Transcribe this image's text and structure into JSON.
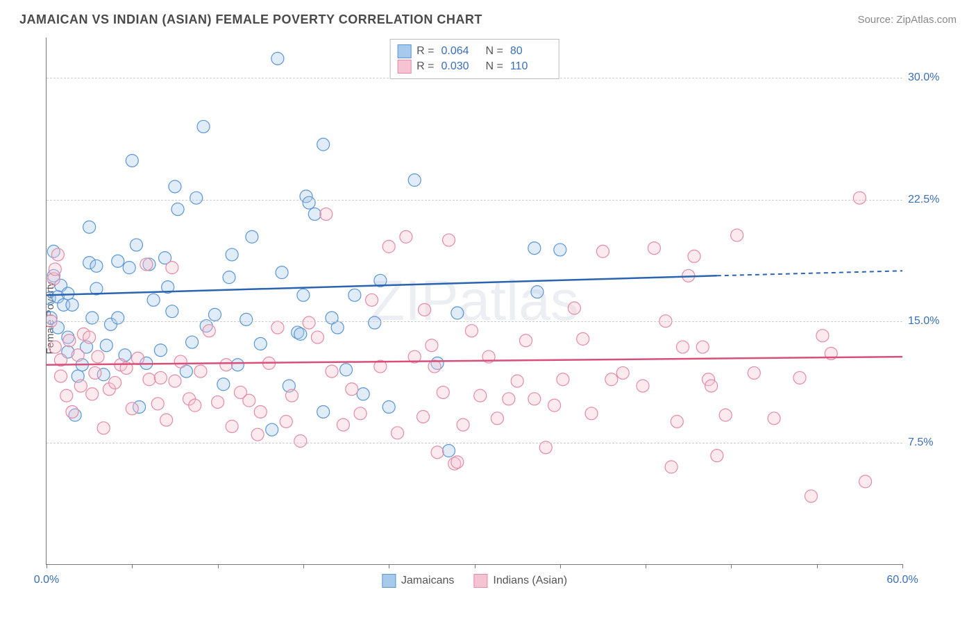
{
  "title": "JAMAICAN VS INDIAN (ASIAN) FEMALE POVERTY CORRELATION CHART",
  "source": "Source: ZipAtlas.com",
  "ylabel": "Female Poverty",
  "watermark": "ZIPatlas",
  "chart": {
    "type": "scatter",
    "background_color": "#ffffff",
    "grid_color": "#cccccc",
    "axis_color": "#777777",
    "text_color": "#555555",
    "value_color": "#3a6fb7",
    "xlim": [
      0,
      60
    ],
    "ylim": [
      0,
      32.5
    ],
    "xtick_positions": [
      0,
      6,
      12,
      18,
      24,
      30,
      36,
      42,
      48,
      54,
      60
    ],
    "xtick_labels": {
      "0": "0.0%",
      "60": "60.0%"
    },
    "ytick_positions": [
      7.5,
      15.0,
      22.5,
      30.0
    ],
    "ytick_labels": [
      "7.5%",
      "15.0%",
      "22.5%",
      "30.0%"
    ],
    "marker_radius": 9,
    "marker_stroke_width": 1.2,
    "marker_fill_opacity": 0.35,
    "line_width": 2.5,
    "series": [
      {
        "key": "jamaicans",
        "label": "Jamaicans",
        "color_stroke": "#5a95d6",
        "color_fill": "#a7c9ec",
        "line_color": "#2a63b0",
        "R": "0.064",
        "N": "80",
        "trend": {
          "x1": 0,
          "y1": 16.6,
          "x2": 47,
          "y2": 17.8,
          "dash_x2": 60,
          "dash_y2": 18.1
        },
        "points": [
          [
            0.2,
            16.4
          ],
          [
            0.3,
            15.2
          ],
          [
            0.5,
            17.8
          ],
          [
            0.5,
            19.3
          ],
          [
            0.8,
            14.6
          ],
          [
            0.8,
            16.5
          ],
          [
            1.0,
            17.2
          ],
          [
            1.2,
            16.0
          ],
          [
            1.5,
            14.0
          ],
          [
            1.5,
            13.1
          ],
          [
            1.5,
            16.7
          ],
          [
            1.8,
            16.0
          ],
          [
            2.0,
            9.2
          ],
          [
            2.2,
            11.6
          ],
          [
            2.5,
            12.3
          ],
          [
            2.8,
            13.4
          ],
          [
            3.0,
            20.8
          ],
          [
            3.0,
            18.6
          ],
          [
            3.2,
            15.2
          ],
          [
            3.5,
            17.0
          ],
          [
            3.5,
            18.4
          ],
          [
            4.0,
            11.7
          ],
          [
            4.2,
            13.5
          ],
          [
            4.5,
            14.8
          ],
          [
            5.0,
            15.2
          ],
          [
            5.0,
            18.7
          ],
          [
            5.5,
            12.9
          ],
          [
            5.8,
            18.3
          ],
          [
            6.0,
            24.9
          ],
          [
            6.3,
            19.7
          ],
          [
            6.5,
            9.7
          ],
          [
            7.0,
            12.4
          ],
          [
            7.2,
            18.5
          ],
          [
            7.5,
            16.3
          ],
          [
            8.0,
            13.2
          ],
          [
            8.3,
            18.9
          ],
          [
            8.5,
            17.1
          ],
          [
            8.8,
            15.6
          ],
          [
            9.0,
            23.3
          ],
          [
            9.2,
            21.9
          ],
          [
            9.8,
            11.9
          ],
          [
            10.2,
            13.7
          ],
          [
            10.5,
            22.6
          ],
          [
            11.0,
            27.0
          ],
          [
            11.2,
            14.7
          ],
          [
            11.8,
            15.4
          ],
          [
            12.4,
            11.1
          ],
          [
            12.8,
            17.7
          ],
          [
            13.0,
            19.1
          ],
          [
            13.4,
            12.3
          ],
          [
            14.0,
            15.1
          ],
          [
            14.4,
            20.2
          ],
          [
            15.0,
            13.6
          ],
          [
            15.8,
            8.3
          ],
          [
            16.2,
            31.2
          ],
          [
            16.5,
            18.0
          ],
          [
            17.0,
            11.0
          ],
          [
            17.6,
            14.3
          ],
          [
            17.8,
            14.2
          ],
          [
            18.0,
            16.6
          ],
          [
            18.2,
            22.7
          ],
          [
            18.4,
            22.3
          ],
          [
            18.8,
            21.6
          ],
          [
            19.4,
            9.4
          ],
          [
            19.4,
            25.9
          ],
          [
            20.0,
            15.2
          ],
          [
            20.4,
            14.6
          ],
          [
            21.0,
            12.0
          ],
          [
            21.6,
            16.6
          ],
          [
            22.2,
            10.5
          ],
          [
            23.0,
            14.9
          ],
          [
            23.4,
            17.5
          ],
          [
            24.0,
            9.7
          ],
          [
            25.8,
            23.7
          ],
          [
            27.4,
            12.4
          ],
          [
            28.2,
            7.0
          ],
          [
            28.8,
            15.5
          ],
          [
            34.2,
            19.5
          ],
          [
            34.4,
            16.8
          ],
          [
            36.0,
            19.4
          ]
        ]
      },
      {
        "key": "indians",
        "label": "Indians (Asian)",
        "color_stroke": "#e48aa4",
        "color_fill": "#f5c3d2",
        "line_color": "#d94f7a",
        "R": "0.030",
        "N": "110",
        "trend": {
          "x1": 0,
          "y1": 12.3,
          "x2": 60,
          "y2": 12.8
        },
        "points": [
          [
            0.3,
            15.0
          ],
          [
            0.5,
            17.6
          ],
          [
            0.6,
            18.2
          ],
          [
            0.6,
            13.4
          ],
          [
            0.8,
            19.1
          ],
          [
            1.0,
            12.6
          ],
          [
            1.0,
            11.6
          ],
          [
            1.4,
            10.4
          ],
          [
            1.6,
            13.8
          ],
          [
            1.8,
            9.4
          ],
          [
            2.2,
            12.9
          ],
          [
            2.4,
            11.0
          ],
          [
            2.6,
            14.2
          ],
          [
            3.0,
            14.0
          ],
          [
            3.2,
            10.5
          ],
          [
            3.4,
            11.8
          ],
          [
            3.6,
            12.8
          ],
          [
            4.0,
            8.4
          ],
          [
            4.4,
            10.8
          ],
          [
            4.8,
            11.2
          ],
          [
            5.2,
            12.3
          ],
          [
            5.6,
            12.1
          ],
          [
            6.0,
            9.6
          ],
          [
            6.4,
            12.7
          ],
          [
            7.0,
            18.5
          ],
          [
            7.2,
            11.4
          ],
          [
            7.8,
            9.9
          ],
          [
            8.0,
            11.5
          ],
          [
            8.4,
            8.9
          ],
          [
            8.8,
            18.3
          ],
          [
            9.0,
            11.3
          ],
          [
            9.4,
            12.5
          ],
          [
            10.0,
            10.2
          ],
          [
            10.4,
            9.8
          ],
          [
            10.8,
            11.9
          ],
          [
            11.4,
            14.4
          ],
          [
            12.0,
            10.0
          ],
          [
            12.6,
            12.3
          ],
          [
            13.0,
            8.5
          ],
          [
            13.6,
            10.6
          ],
          [
            14.2,
            10.1
          ],
          [
            14.8,
            8.0
          ],
          [
            15.0,
            9.4
          ],
          [
            15.6,
            12.4
          ],
          [
            16.2,
            14.6
          ],
          [
            16.8,
            8.8
          ],
          [
            17.2,
            10.4
          ],
          [
            17.8,
            7.6
          ],
          [
            18.4,
            14.9
          ],
          [
            19.0,
            14.0
          ],
          [
            19.6,
            21.6
          ],
          [
            20.0,
            11.9
          ],
          [
            20.8,
            8.6
          ],
          [
            21.4,
            10.8
          ],
          [
            22.0,
            9.3
          ],
          [
            22.8,
            16.3
          ],
          [
            23.4,
            12.2
          ],
          [
            24.0,
            19.6
          ],
          [
            24.6,
            8.1
          ],
          [
            25.2,
            20.2
          ],
          [
            25.8,
            12.8
          ],
          [
            26.4,
            9.1
          ],
          [
            26.5,
            15.7
          ],
          [
            27.0,
            13.5
          ],
          [
            27.2,
            12.2
          ],
          [
            27.4,
            6.9
          ],
          [
            27.8,
            10.6
          ],
          [
            28.2,
            20.0
          ],
          [
            28.6,
            6.2
          ],
          [
            28.8,
            6.3
          ],
          [
            29.2,
            8.6
          ],
          [
            29.8,
            14.4
          ],
          [
            30.4,
            10.4
          ],
          [
            31.0,
            12.8
          ],
          [
            31.6,
            9.0
          ],
          [
            32.4,
            10.2
          ],
          [
            33.0,
            11.3
          ],
          [
            33.6,
            13.8
          ],
          [
            34.2,
            10.2
          ],
          [
            35.0,
            7.2
          ],
          [
            35.6,
            9.8
          ],
          [
            36.2,
            11.4
          ],
          [
            37.0,
            15.8
          ],
          [
            37.6,
            13.9
          ],
          [
            38.2,
            9.3
          ],
          [
            39.0,
            19.3
          ],
          [
            39.6,
            11.4
          ],
          [
            40.4,
            11.8
          ],
          [
            41.8,
            11.0
          ],
          [
            42.6,
            19.5
          ],
          [
            43.4,
            15.0
          ],
          [
            43.8,
            6.0
          ],
          [
            44.2,
            8.8
          ],
          [
            44.6,
            13.4
          ],
          [
            45.0,
            17.8
          ],
          [
            45.4,
            19.0
          ],
          [
            46.0,
            13.4
          ],
          [
            46.4,
            11.4
          ],
          [
            46.6,
            11.0
          ],
          [
            47.0,
            6.7
          ],
          [
            47.6,
            9.2
          ],
          [
            48.4,
            20.3
          ],
          [
            49.6,
            11.8
          ],
          [
            51.0,
            9.0
          ],
          [
            52.8,
            11.5
          ],
          [
            53.6,
            4.2
          ],
          [
            54.4,
            14.1
          ],
          [
            55.0,
            13.0
          ],
          [
            57.0,
            22.6
          ],
          [
            57.4,
            5.1
          ]
        ]
      }
    ],
    "legend_top": {
      "R_label": "R =",
      "N_label": "N ="
    }
  }
}
